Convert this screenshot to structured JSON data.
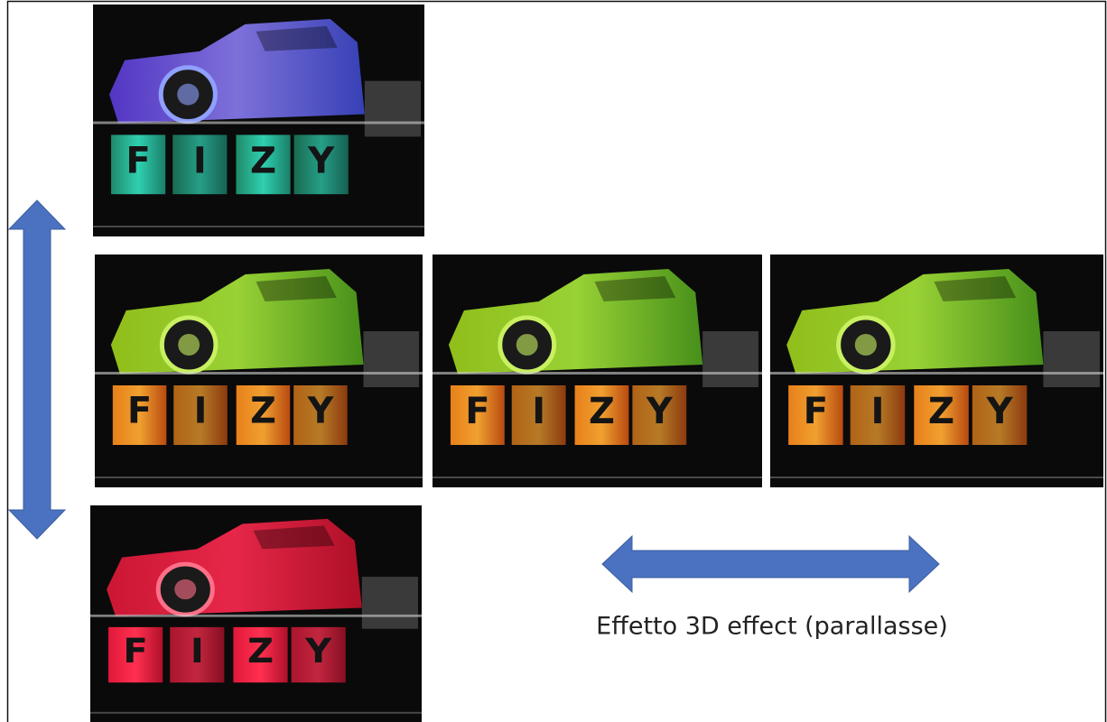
{
  "caption": "Effetto 3D effect (parallasse)",
  "tiles": [
    "F",
    "I",
    "Z",
    "Y"
  ]
}
